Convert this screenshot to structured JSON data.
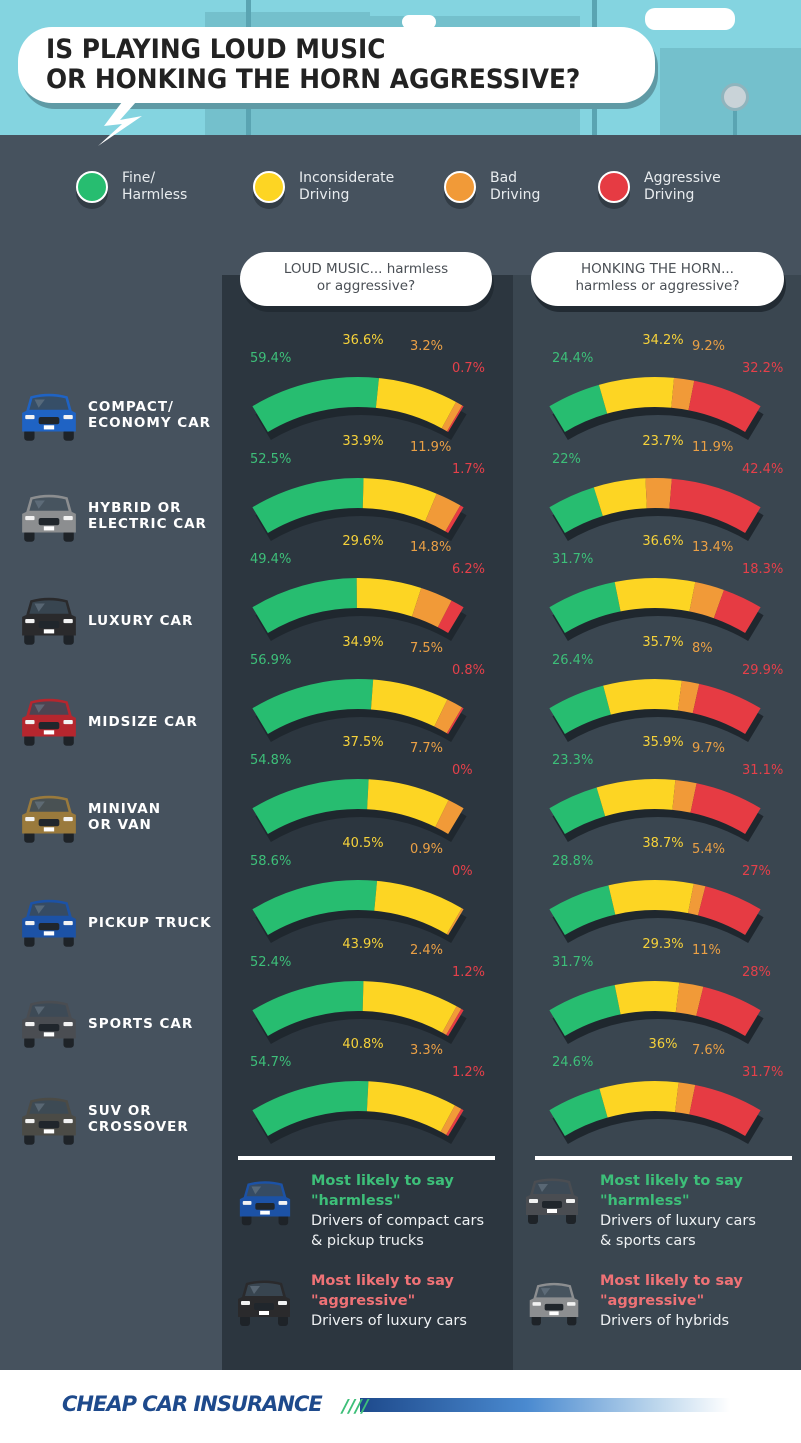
{
  "header": {
    "title_line1": "IS PLAYING LOUD MUSIC",
    "title_line2": "OR HONKING THE HORN AGGRESSIVE?"
  },
  "legend": [
    {
      "line1": "Fine/",
      "line2": "Harmless",
      "color": "#27bd70"
    },
    {
      "line1": "Inconsiderate",
      "line2": "Driving",
      "color": "#fdd523"
    },
    {
      "line1": "Bad",
      "line2": "Driving",
      "color": "#f19a38"
    },
    {
      "line1": "Aggressive",
      "line2": "Driving",
      "color": "#e63b43"
    }
  ],
  "questions": {
    "left_line1": "LOUD MUSIC... harmless",
    "left_line2": "or aggressive?",
    "right_line1": "HONKING THE HORN...",
    "right_line2": "harmless or aggressive?"
  },
  "cars": [
    {
      "line1": "COMPACT/",
      "line2": "ECONOMY CAR",
      "icon": "compact-car-icon",
      "color": "#1f63c4"
    },
    {
      "line1": "HYBRID OR",
      "line2": "ELECTRIC CAR",
      "icon": "hybrid-car-icon",
      "color": "#8c8e90"
    },
    {
      "line1": "LUXURY CAR",
      "line2": "",
      "icon": "luxury-car-icon",
      "color": "#2a2a2c"
    },
    {
      "line1": "MIDSIZE CAR",
      "line2": "",
      "icon": "midsize-car-icon",
      "color": "#b6262e"
    },
    {
      "line1": "MINIVAN",
      "line2": "OR VAN",
      "icon": "minivan-icon",
      "color": "#9a7a3c"
    },
    {
      "line1": "PICKUP TRUCK",
      "line2": "",
      "icon": "pickup-truck-icon",
      "color": "#1c52a6"
    },
    {
      "line1": "SPORTS CAR",
      "line2": "",
      "icon": "sports-car-icon",
      "color": "#4a4d52"
    },
    {
      "line1": "SUV OR",
      "line2": "CROSSOVER",
      "icon": "suv-icon",
      "color": "#4b4b46"
    }
  ],
  "chart_data": [
    {
      "type": "gauge",
      "title": "LOUD MUSIC... harmless or aggressive?",
      "categories": [
        "Compact/Economy Car",
        "Hybrid or Electric Car",
        "Luxury Car",
        "Midsize Car",
        "Minivan or Van",
        "Pickup Truck",
        "Sports Car",
        "SUV or Crossover"
      ],
      "series": [
        {
          "name": "Fine/Harmless",
          "values": [
            59.4,
            52.5,
            49.4,
            56.9,
            54.8,
            58.6,
            52.4,
            54.7
          ],
          "labels": [
            "59.4%",
            "52.5%",
            "49.4%",
            "56.9%",
            "54.8%",
            "58.6%",
            "52.4%",
            "54.7%"
          ]
        },
        {
          "name": "Inconsiderate Driving",
          "values": [
            36.6,
            33.9,
            29.6,
            34.9,
            37.5,
            40.5,
            43.9,
            40.8
          ],
          "labels": [
            "36.6%",
            "33.9%",
            "29.6%",
            "34.9%",
            "37.5%",
            "40.5%",
            "43.9%",
            "40.8%"
          ]
        },
        {
          "name": "Bad Driving",
          "values": [
            3.2,
            11.9,
            14.8,
            7.5,
            7.7,
            0.9,
            2.4,
            3.3
          ],
          "labels": [
            "3.2%",
            "11.9%",
            "14.8%",
            "7.5%",
            "7.7%",
            "0.9%",
            "2.4%",
            "3.3%"
          ]
        },
        {
          "name": "Aggressive Driving",
          "values": [
            0.7,
            1.7,
            6.2,
            0.8,
            0,
            0,
            1.2,
            1.2
          ],
          "labels": [
            "0.7%",
            "1.7%",
            "6.2%",
            "0.8%",
            "0%",
            "0%",
            "1.2%",
            "1.2%"
          ]
        }
      ]
    },
    {
      "type": "gauge",
      "title": "HONKING THE HORN... harmless or aggressive?",
      "categories": [
        "Compact/Economy Car",
        "Hybrid or Electric Car",
        "Luxury Car",
        "Midsize Car",
        "Minivan or Van",
        "Pickup Truck",
        "Sports Car",
        "SUV or Crossover"
      ],
      "series": [
        {
          "name": "Fine/Harmless",
          "values": [
            24.4,
            22,
            31.7,
            26.4,
            23.3,
            28.8,
            31.7,
            24.6
          ],
          "labels": [
            "24.4%",
            "22%",
            "31.7%",
            "26.4%",
            "23.3%",
            "28.8%",
            "31.7%",
            "24.6%"
          ]
        },
        {
          "name": "Inconsiderate Driving",
          "values": [
            34.2,
            23.7,
            36.6,
            35.7,
            35.9,
            38.7,
            29.3,
            36
          ],
          "labels": [
            "34.2%",
            "23.7%",
            "36.6%",
            "35.7%",
            "35.9%",
            "38.7%",
            "29.3%",
            "36%"
          ]
        },
        {
          "name": "Bad Driving",
          "values": [
            9.2,
            11.9,
            13.4,
            8,
            9.7,
            5.4,
            11,
            7.6
          ],
          "labels": [
            "9.2%",
            "11.9%",
            "13.4%",
            "8%",
            "9.7%",
            "5.4%",
            "11%",
            "7.6%"
          ]
        },
        {
          "name": "Aggressive Driving",
          "values": [
            32.2,
            42.4,
            18.3,
            29.9,
            31.1,
            27,
            28,
            31.7
          ],
          "labels": [
            "32.2%",
            "42.4%",
            "18.3%",
            "29.9%",
            "31.1%",
            "27%",
            "28%",
            "31.7%"
          ]
        }
      ]
    }
  ],
  "summary": {
    "left": {
      "harmless_heading1": "Most likely to say",
      "harmless_heading2": "\"harmless\"",
      "harmless_desc1": "Drivers of compact cars",
      "harmless_desc2": "& pickup trucks",
      "aggressive_heading1": "Most likely to say",
      "aggressive_heading2": "\"aggressive\"",
      "aggressive_desc1": "Drivers of luxury cars"
    },
    "right": {
      "harmless_heading1": "Most likely to say",
      "harmless_heading2": "\"harmless\"",
      "harmless_desc1": "Drivers of luxury cars",
      "harmless_desc2": "& sports cars",
      "aggressive_heading1": "Most likely to say",
      "aggressive_heading2": "\"aggressive\"",
      "aggressive_desc1": "Drivers of hybrids"
    }
  },
  "footer": {
    "logo": "CHEAP CAR INSURANCE",
    "logo_stripes": "////"
  }
}
